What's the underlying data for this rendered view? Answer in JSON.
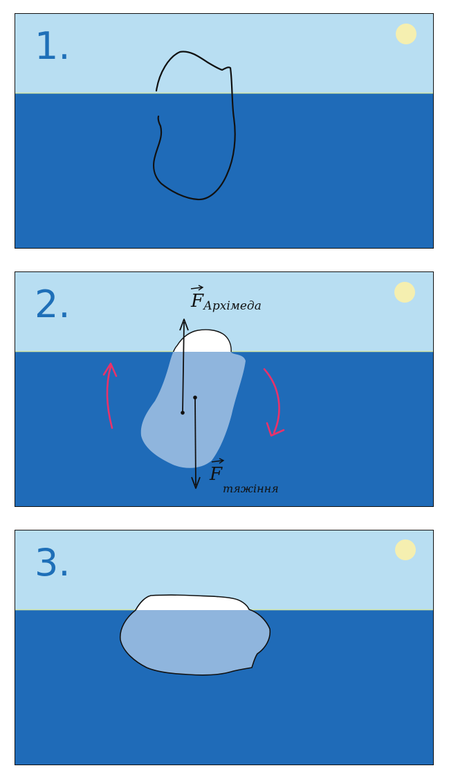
{
  "colors": {
    "sky": "#b8def2",
    "water": "#1f6bb8",
    "sun": "#f5efb0",
    "horizon_line": "#cfe3a6",
    "iceberg_submerged": "#8fb5dd",
    "iceberg_above": "#ffffff",
    "outline": "#111111",
    "rotation_arrows": "#e8326a",
    "number_text": "#1e6fb8"
  },
  "panels": [
    {
      "number": "1."
    },
    {
      "number": "2.",
      "force_up": {
        "letter": "F",
        "subscript": "Архімеда"
      },
      "force_down": {
        "letter": "F",
        "subscript": "тяжіння"
      }
    },
    {
      "number": "3."
    }
  ],
  "icons": [
    "sun-icon",
    "rotation-arrow-icon"
  ]
}
